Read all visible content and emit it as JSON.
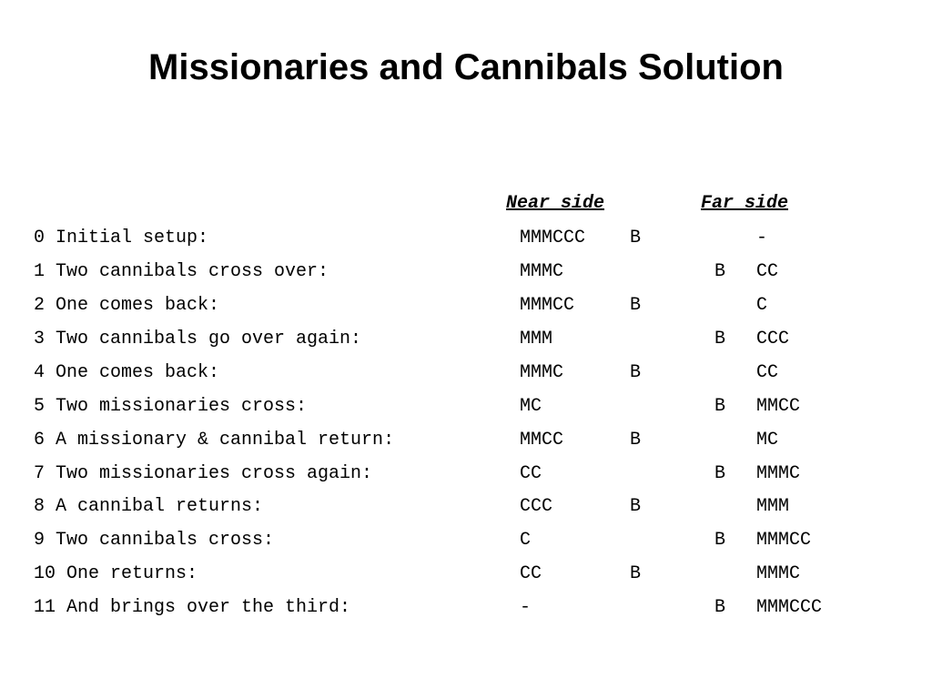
{
  "title": "Missionaries and Cannibals Solution",
  "table": {
    "headers": {
      "near_side": "Near side",
      "far_side": "Far side"
    },
    "rows": [
      {
        "step": "0 Initial setup:",
        "near": "MMMCCC",
        "near_boat": "B",
        "far_boat": "",
        "far": "-"
      },
      {
        "step": "1 Two cannibals cross over:",
        "near": "MMMC",
        "near_boat": "",
        "far_boat": "B",
        "far": "CC"
      },
      {
        "step": "2 One comes back:",
        "near": "MMMCC",
        "near_boat": "B",
        "far_boat": "",
        "far": "C"
      },
      {
        "step": "3 Two cannibals go over again:",
        "near": "MMM",
        "near_boat": "",
        "far_boat": "B",
        "far": "CCC"
      },
      {
        "step": "4 One comes back:",
        "near": "MMMC",
        "near_boat": "B",
        "far_boat": "",
        "far": "CC"
      },
      {
        "step": "5 Two missionaries cross:",
        "near": "MC",
        "near_boat": "",
        "far_boat": "B",
        "far": "MMCC"
      },
      {
        "step": "6 A missionary & cannibal return:",
        "near": "MMCC",
        "near_boat": "B",
        "far_boat": "",
        "far": "MC"
      },
      {
        "step": "7 Two missionaries cross again:",
        "near": "CC",
        "near_boat": "",
        "far_boat": "B",
        "far": "MMMC"
      },
      {
        "step": "8 A cannibal returns:",
        "near": "CCC",
        "near_boat": "B",
        "far_boat": "",
        "far": "MMM"
      },
      {
        "step": "9 Two cannibals cross:",
        "near": "C",
        "near_boat": "",
        "far_boat": "B",
        "far": "MMMCC"
      },
      {
        "step": "10 One returns:",
        "near": "CC",
        "near_boat": "B",
        "far_boat": "",
        "far": "MMMC"
      },
      {
        "step": "11 And brings over the third:",
        "near": "-",
        "near_boat": "",
        "far_boat": "B",
        "far": "MMMCCC"
      }
    ]
  }
}
